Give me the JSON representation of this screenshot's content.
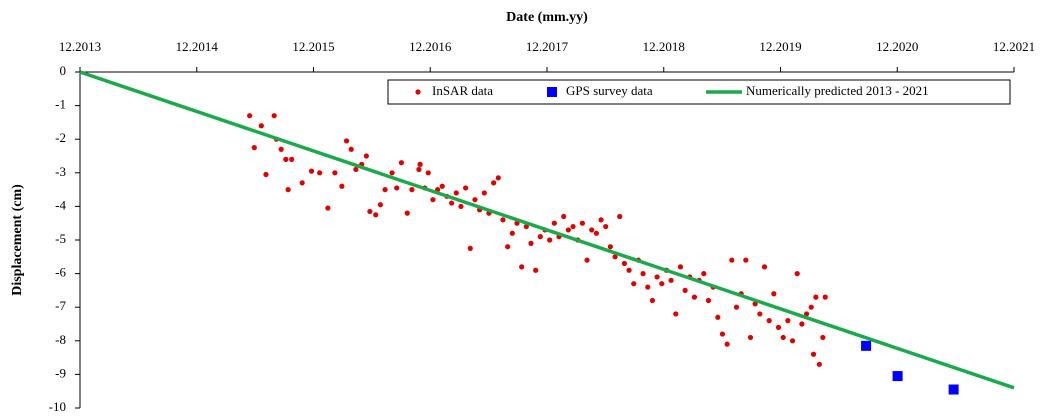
{
  "chart_data": {
    "type": "scatter",
    "x_label": "Date (mm.yy)",
    "y_label": "Displacement (cm)",
    "xlim": [
      2013.917,
      2021.917
    ],
    "xticks": [
      {
        "value": 2013.917,
        "label": "12.2013"
      },
      {
        "value": 2014.917,
        "label": "12.2014"
      },
      {
        "value": 2015.917,
        "label": "12.2015"
      },
      {
        "value": 2016.917,
        "label": "12.2016"
      },
      {
        "value": 2017.917,
        "label": "12.2017"
      },
      {
        "value": 2018.917,
        "label": "12.2018"
      },
      {
        "value": 2019.917,
        "label": "12.2019"
      },
      {
        "value": 2020.917,
        "label": "12.2020"
      },
      {
        "value": 2021.917,
        "label": "12.2021"
      }
    ],
    "ylim": [
      -10,
      0
    ],
    "yticks": [
      0,
      -1,
      -2,
      -3,
      -4,
      -5,
      -6,
      -7,
      -8,
      -9,
      -10
    ],
    "grid": false,
    "legend": "top-right",
    "series": [
      {
        "name": "InSAR data",
        "marker": "circle",
        "color": "#e00000",
        "x": [
          2015.37,
          2015.41,
          2015.47,
          2015.51,
          2015.58,
          2015.6,
          2015.64,
          2015.68,
          2015.7,
          2015.73,
          2015.82,
          2015.9,
          2015.97,
          2016.04,
          2016.1,
          2016.16,
          2016.2,
          2016.24,
          2016.28,
          2016.33,
          2016.37,
          2016.4,
          2016.45,
          2016.49,
          2016.53,
          2016.59,
          2016.63,
          2016.67,
          2016.72,
          2016.76,
          2016.82,
          2016.83,
          2016.87,
          2016.9,
          2016.94,
          2016.98,
          2017.02,
          2017.06,
          2017.1,
          2017.14,
          2017.18,
          2017.22,
          2017.26,
          2017.3,
          2017.34,
          2017.38,
          2017.42,
          2017.46,
          2017.5,
          2017.54,
          2017.58,
          2017.62,
          2017.66,
          2017.7,
          2017.74,
          2017.78,
          2017.82,
          2017.86,
          2017.9,
          2017.94,
          2017.98,
          2018.02,
          2018.06,
          2018.1,
          2018.14,
          2018.18,
          2018.22,
          2018.26,
          2018.3,
          2018.34,
          2018.38,
          2018.42,
          2018.46,
          2018.5,
          2018.54,
          2018.58,
          2018.62,
          2018.66,
          2018.7,
          2018.74,
          2018.78,
          2018.82,
          2018.86,
          2018.9,
          2018.94,
          2018.98,
          2019.02,
          2019.06,
          2019.1,
          2019.14,
          2019.18,
          2019.22,
          2019.26,
          2019.3,
          2019.34,
          2019.38,
          2019.42,
          2019.46,
          2019.5,
          2019.54,
          2019.58,
          2019.62,
          2019.66,
          2019.7,
          2019.74,
          2019.78,
          2019.82,
          2019.86,
          2019.9,
          2019.94,
          2019.98,
          2020.02,
          2020.06,
          2020.1,
          2020.14,
          2020.18,
          2020.2,
          2020.22,
          2020.25,
          2020.28,
          2020.3
        ],
        "values": [
          -1.3,
          -2.25,
          -1.6,
          -3.05,
          -1.3,
          -2.0,
          -2.3,
          -2.6,
          -3.5,
          -2.6,
          -3.3,
          -2.95,
          -3.0,
          -4.05,
          -3.0,
          -3.4,
          -2.05,
          -2.3,
          -2.9,
          -2.75,
          -2.5,
          -4.15,
          -4.25,
          -3.95,
          -3.5,
          -3.0,
          -3.45,
          -2.7,
          -4.2,
          -3.5,
          -2.9,
          -2.75,
          -3.45,
          -3.0,
          -3.8,
          -3.5,
          -3.4,
          -3.7,
          -3.9,
          -3.6,
          -4.0,
          -3.45,
          -5.25,
          -3.8,
          -4.1,
          -3.6,
          -4.2,
          -3.3,
          -3.15,
          -4.4,
          -5.2,
          -4.8,
          -4.5,
          -5.8,
          -4.6,
          -5.1,
          -5.9,
          -4.9,
          -4.7,
          -5.0,
          -4.5,
          -4.9,
          -4.3,
          -4.7,
          -4.6,
          -5.0,
          -4.5,
          -5.6,
          -4.7,
          -4.8,
          -4.4,
          -4.6,
          -5.2,
          -5.5,
          -4.3,
          -5.7,
          -5.9,
          -6.3,
          -5.6,
          -6.0,
          -6.4,
          -6.8,
          -6.1,
          -6.3,
          -5.9,
          -6.2,
          -7.2,
          -5.8,
          -6.5,
          -6.1,
          -6.7,
          -6.2,
          -6.0,
          -6.8,
          -6.4,
          -7.3,
          -7.8,
          -8.1,
          -5.6,
          -7.0,
          -6.6,
          -5.6,
          -7.9,
          -6.9,
          -7.2,
          -5.8,
          -7.4,
          -6.6,
          -7.6,
          -7.9,
          -7.4,
          -8.0,
          -6.0,
          -7.5,
          -7.2,
          -7.0,
          -8.4,
          -6.7,
          -8.7,
          -7.9,
          -6.7
        ]
      },
      {
        "name": "GPS survey data",
        "marker": "square",
        "color": "#0000ff",
        "x": [
          2020.65,
          2020.92,
          2021.4
        ],
        "values": [
          -8.15,
          -9.05,
          -9.45
        ]
      },
      {
        "name": "Numerically predicted 2013 - 2021",
        "marker": "line",
        "color": "#1aaa4a",
        "x": [
          2013.917,
          2021.917
        ],
        "values": [
          0,
          -9.4
        ]
      }
    ]
  }
}
